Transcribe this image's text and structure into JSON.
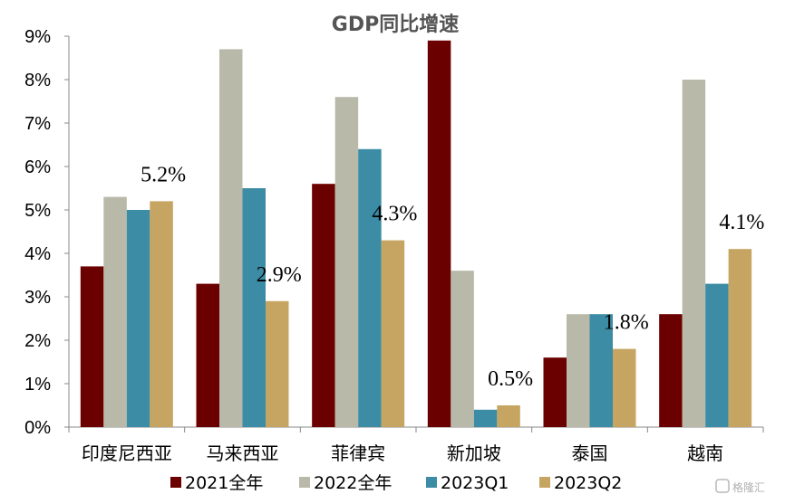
{
  "chart_data": {
    "type": "bar",
    "title": "GDP同比增速",
    "categories": [
      "印度尼西亚",
      "马来西亚",
      "菲律宾",
      "新加坡",
      "泰国",
      "越南"
    ],
    "series": [
      {
        "name": "2021全年",
        "color": "#6b0000",
        "values": [
          3.7,
          3.3,
          5.6,
          8.9,
          1.6,
          2.6
        ]
      },
      {
        "name": "2022全年",
        "color": "#b9b9a9",
        "values": [
          5.3,
          8.7,
          7.6,
          3.6,
          2.6,
          8.0
        ]
      },
      {
        "name": "2023Q1",
        "color": "#3b8ca4",
        "values": [
          5.0,
          5.5,
          6.4,
          0.4,
          2.6,
          3.3
        ]
      },
      {
        "name": "2023Q2",
        "color": "#c6a563",
        "values": [
          5.2,
          2.9,
          4.3,
          0.5,
          1.8,
          4.1
        ]
      }
    ],
    "data_labels": [
      "5.2%",
      "2.9%",
      "4.3%",
      "0.5%",
      "1.8%",
      "4.1%"
    ],
    "yticks": [
      "0%",
      "1%",
      "2%",
      "3%",
      "4%",
      "5%",
      "6%",
      "7%",
      "8%",
      "9%"
    ],
    "ylim": [
      0,
      9
    ],
    "ylabel": "",
    "xlabel": "",
    "grid": false,
    "legend_position": "bottom"
  },
  "watermark": "格隆汇"
}
